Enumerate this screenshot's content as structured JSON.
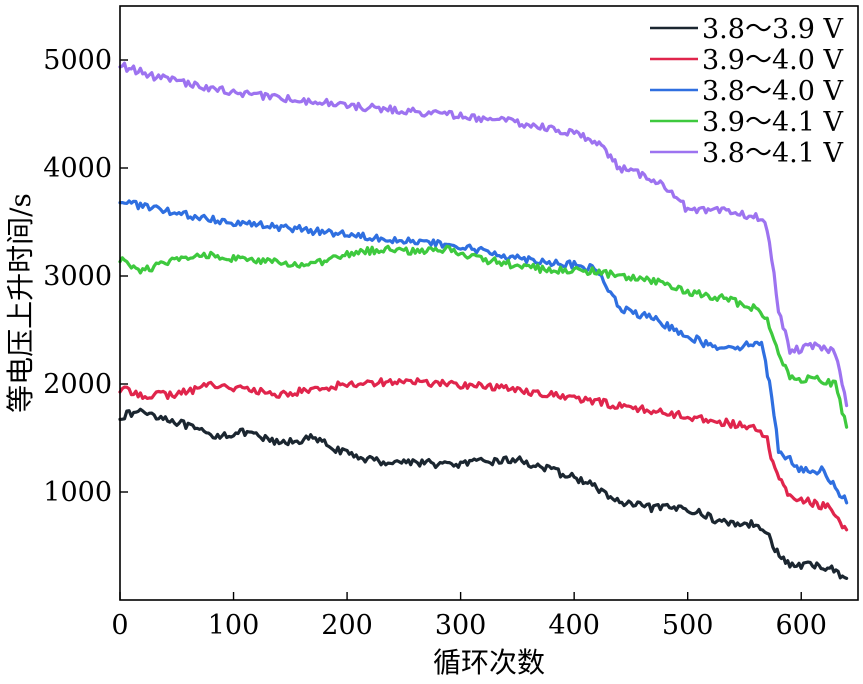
{
  "chart_data": {
    "type": "line",
    "xlabel": "循环次数",
    "ylabel": "等电压上升时间/s",
    "xlim": [
      0,
      650
    ],
    "ylim": [
      0,
      5500
    ],
    "xticks": [
      0,
      100,
      200,
      300,
      400,
      500,
      600
    ],
    "yticks": [
      1000,
      2000,
      3000,
      4000,
      5000
    ],
    "grid": false,
    "legend": "top-right",
    "series": [
      {
        "name": "3.8～3.9 V",
        "color": "#1b2630",
        "x": [
          0,
          20,
          50,
          80,
          110,
          140,
          170,
          200,
          230,
          260,
          290,
          320,
          350,
          380,
          410,
          440,
          470,
          500,
          530,
          560,
          570,
          575,
          590,
          610,
          625,
          640
        ],
        "y": [
          1700,
          1750,
          1650,
          1520,
          1550,
          1450,
          1500,
          1350,
          1280,
          1280,
          1250,
          1280,
          1300,
          1200,
          1100,
          900,
          850,
          850,
          720,
          700,
          650,
          480,
          320,
          320,
          300,
          200
        ]
      },
      {
        "name": "3.9～4.0 V",
        "color": "#e0254c",
        "x": [
          0,
          20,
          50,
          80,
          110,
          140,
          170,
          200,
          230,
          260,
          290,
          320,
          350,
          380,
          410,
          440,
          470,
          500,
          530,
          560,
          570,
          575,
          590,
          610,
          625,
          640
        ],
        "y": [
          1950,
          1900,
          1900,
          2000,
          1950,
          1900,
          1950,
          2000,
          2020,
          2020,
          2000,
          1980,
          1950,
          1900,
          1850,
          1800,
          1750,
          1700,
          1650,
          1580,
          1500,
          1250,
          950,
          900,
          850,
          650
        ]
      },
      {
        "name": "3.8～4.0 V",
        "color": "#2f6fe0",
        "x": [
          0,
          30,
          60,
          100,
          150,
          200,
          250,
          300,
          350,
          400,
          420,
          440,
          470,
          500,
          520,
          550,
          565,
          572,
          580,
          600,
          620,
          640
        ],
        "y": [
          3700,
          3620,
          3560,
          3500,
          3440,
          3390,
          3330,
          3270,
          3170,
          3100,
          3060,
          2700,
          2600,
          2450,
          2350,
          2350,
          2400,
          2000,
          1400,
          1200,
          1200,
          900
        ]
      },
      {
        "name": "3.9～4.1 V",
        "color": "#3ec93e",
        "x": [
          0,
          20,
          50,
          80,
          110,
          140,
          170,
          200,
          230,
          260,
          290,
          320,
          350,
          380,
          410,
          440,
          470,
          500,
          530,
          560,
          570,
          580,
          590,
          610,
          630,
          640
        ],
        "y": [
          3150,
          3050,
          3150,
          3200,
          3150,
          3120,
          3100,
          3200,
          3250,
          3230,
          3250,
          3150,
          3100,
          3050,
          3050,
          3000,
          2950,
          2850,
          2800,
          2700,
          2600,
          2300,
          2050,
          2050,
          2000,
          1600
        ]
      },
      {
        "name": "3.8～4.1 V",
        "color": "#9d73f0",
        "x": [
          0,
          30,
          60,
          100,
          150,
          200,
          250,
          300,
          350,
          400,
          420,
          440,
          470,
          490,
          500,
          530,
          560,
          570,
          580,
          590,
          610,
          630,
          640
        ],
        "y": [
          4950,
          4850,
          4780,
          4700,
          4640,
          4580,
          4530,
          4480,
          4420,
          4320,
          4250,
          4000,
          3900,
          3750,
          3600,
          3600,
          3550,
          3450,
          2700,
          2300,
          2350,
          2300,
          1800
        ]
      }
    ]
  }
}
